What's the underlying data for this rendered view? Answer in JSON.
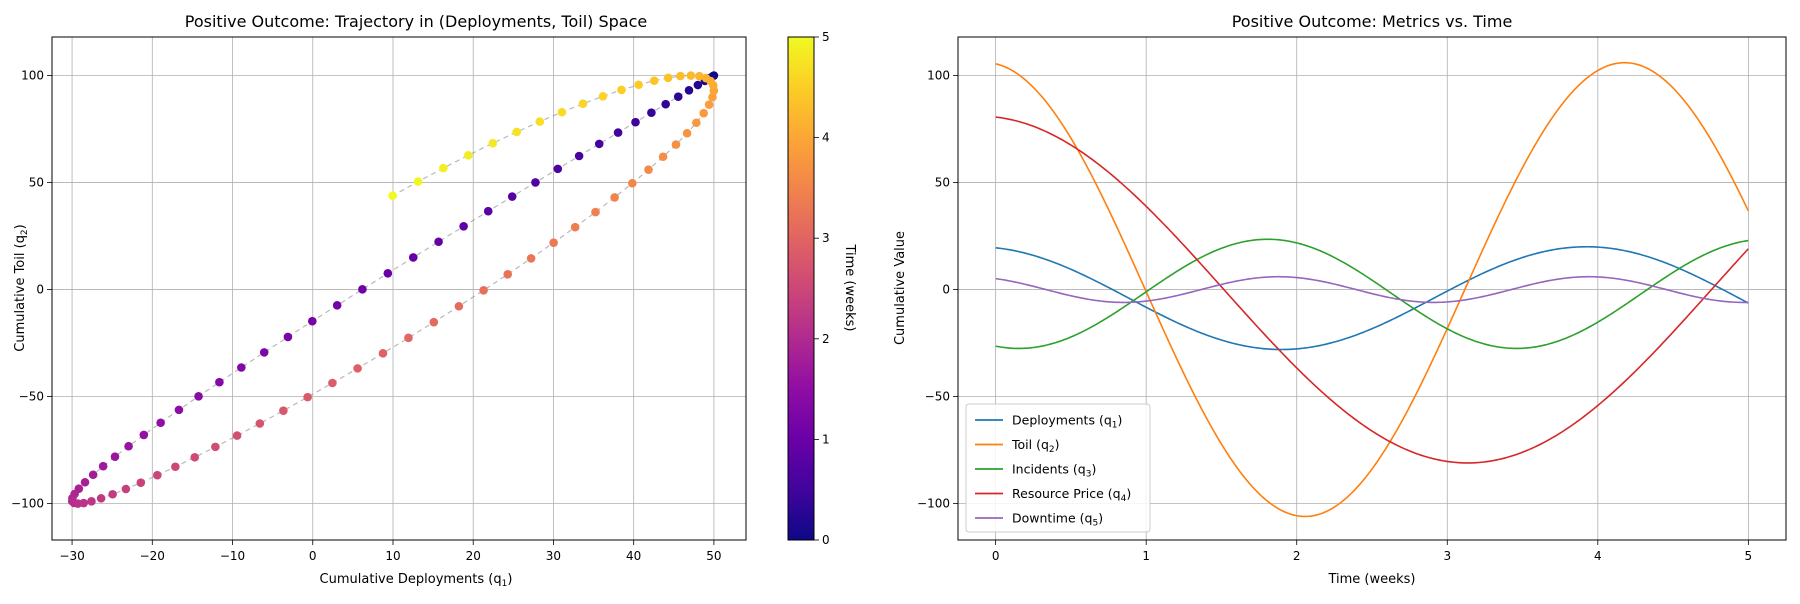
{
  "chart_data": [
    {
      "type": "scatter",
      "title": "Positive Outcome: Trajectory in (Deployments, Toil) Space",
      "xlabel": "Cumulative Deployments (q",
      "xlabel_sub": "1",
      "xlabel_close": ")",
      "ylabel": "Cumulative Toil (q",
      "ylabel_sub": "2",
      "ylabel_close": ")",
      "xlim": [
        -32.5,
        54
      ],
      "ylim": [
        -117,
        118
      ],
      "xticks": [
        -30,
        -20,
        -10,
        0,
        10,
        20,
        30,
        40,
        50
      ],
      "yticks": [
        -100,
        -50,
        0,
        50,
        100
      ],
      "grid": true,
      "colormap": "plasma",
      "colorbar": {
        "label": "Time (weeks)",
        "range": [
          0,
          5
        ],
        "ticks": [
          0,
          1,
          2,
          3,
          4,
          5
        ]
      },
      "line_color": "#808080",
      "model": {
        "t_range": [
          0,
          5
        ],
        "n_points": 100,
        "x": {
          "offset": 10,
          "amplitude": 40,
          "omega": 1.571,
          "phase": 0
        },
        "y": {
          "offset": 0,
          "amplitude": 100,
          "omega": 1.48,
          "phase": 0
        }
      }
    },
    {
      "type": "line",
      "title": "Positive Outcome: Metrics vs. Time",
      "xlabel": "Time (weeks)",
      "ylabel": "Cumulative Value",
      "xlim": [
        -0.25,
        5.25
      ],
      "ylim": [
        -117,
        118
      ],
      "xticks": [
        0,
        1,
        2,
        3,
        4,
        5
      ],
      "yticks": [
        -100,
        -50,
        0,
        50,
        100
      ],
      "grid": true,
      "legend_position": "lower-left",
      "series": [
        {
          "name": "Deployments (q",
          "sub": "1",
          "close": ")",
          "color": "#1f77b4",
          "model": {
            "offset": -4,
            "amplitude": 24,
            "omega": 1.55,
            "phase": 0.2,
            "base": 50
          }
        },
        {
          "name": "Toil (q",
          "sub": "2",
          "close": ")",
          "color": "#ff7f0e",
          "model": {
            "offset": 0,
            "amplitude": 106,
            "omega": 1.48,
            "phase": 0.1,
            "base": 100
          }
        },
        {
          "name": "Incidents (q",
          "sub": "3",
          "close": ")",
          "color": "#2ca02c",
          "model": {
            "offset": -2,
            "amplitude": 25.5,
            "omega": 1.9,
            "phase": 2.85,
            "base": 2
          }
        },
        {
          "name": "Resource Price (q",
          "sub": "4",
          "close": ")",
          "color": "#d62728",
          "model": {
            "offset": 0,
            "amplitude": 81,
            "omega": 0.97,
            "phase": 0.1,
            "base": 80
          }
        },
        {
          "name": "Downtime (q",
          "sub": "5",
          "close": ")",
          "color": "#9467bd",
          "model": {
            "offset": 0,
            "amplitude": 6,
            "omega": 3.05,
            "phase": 0.55,
            "base": 5
          }
        }
      ]
    }
  ]
}
